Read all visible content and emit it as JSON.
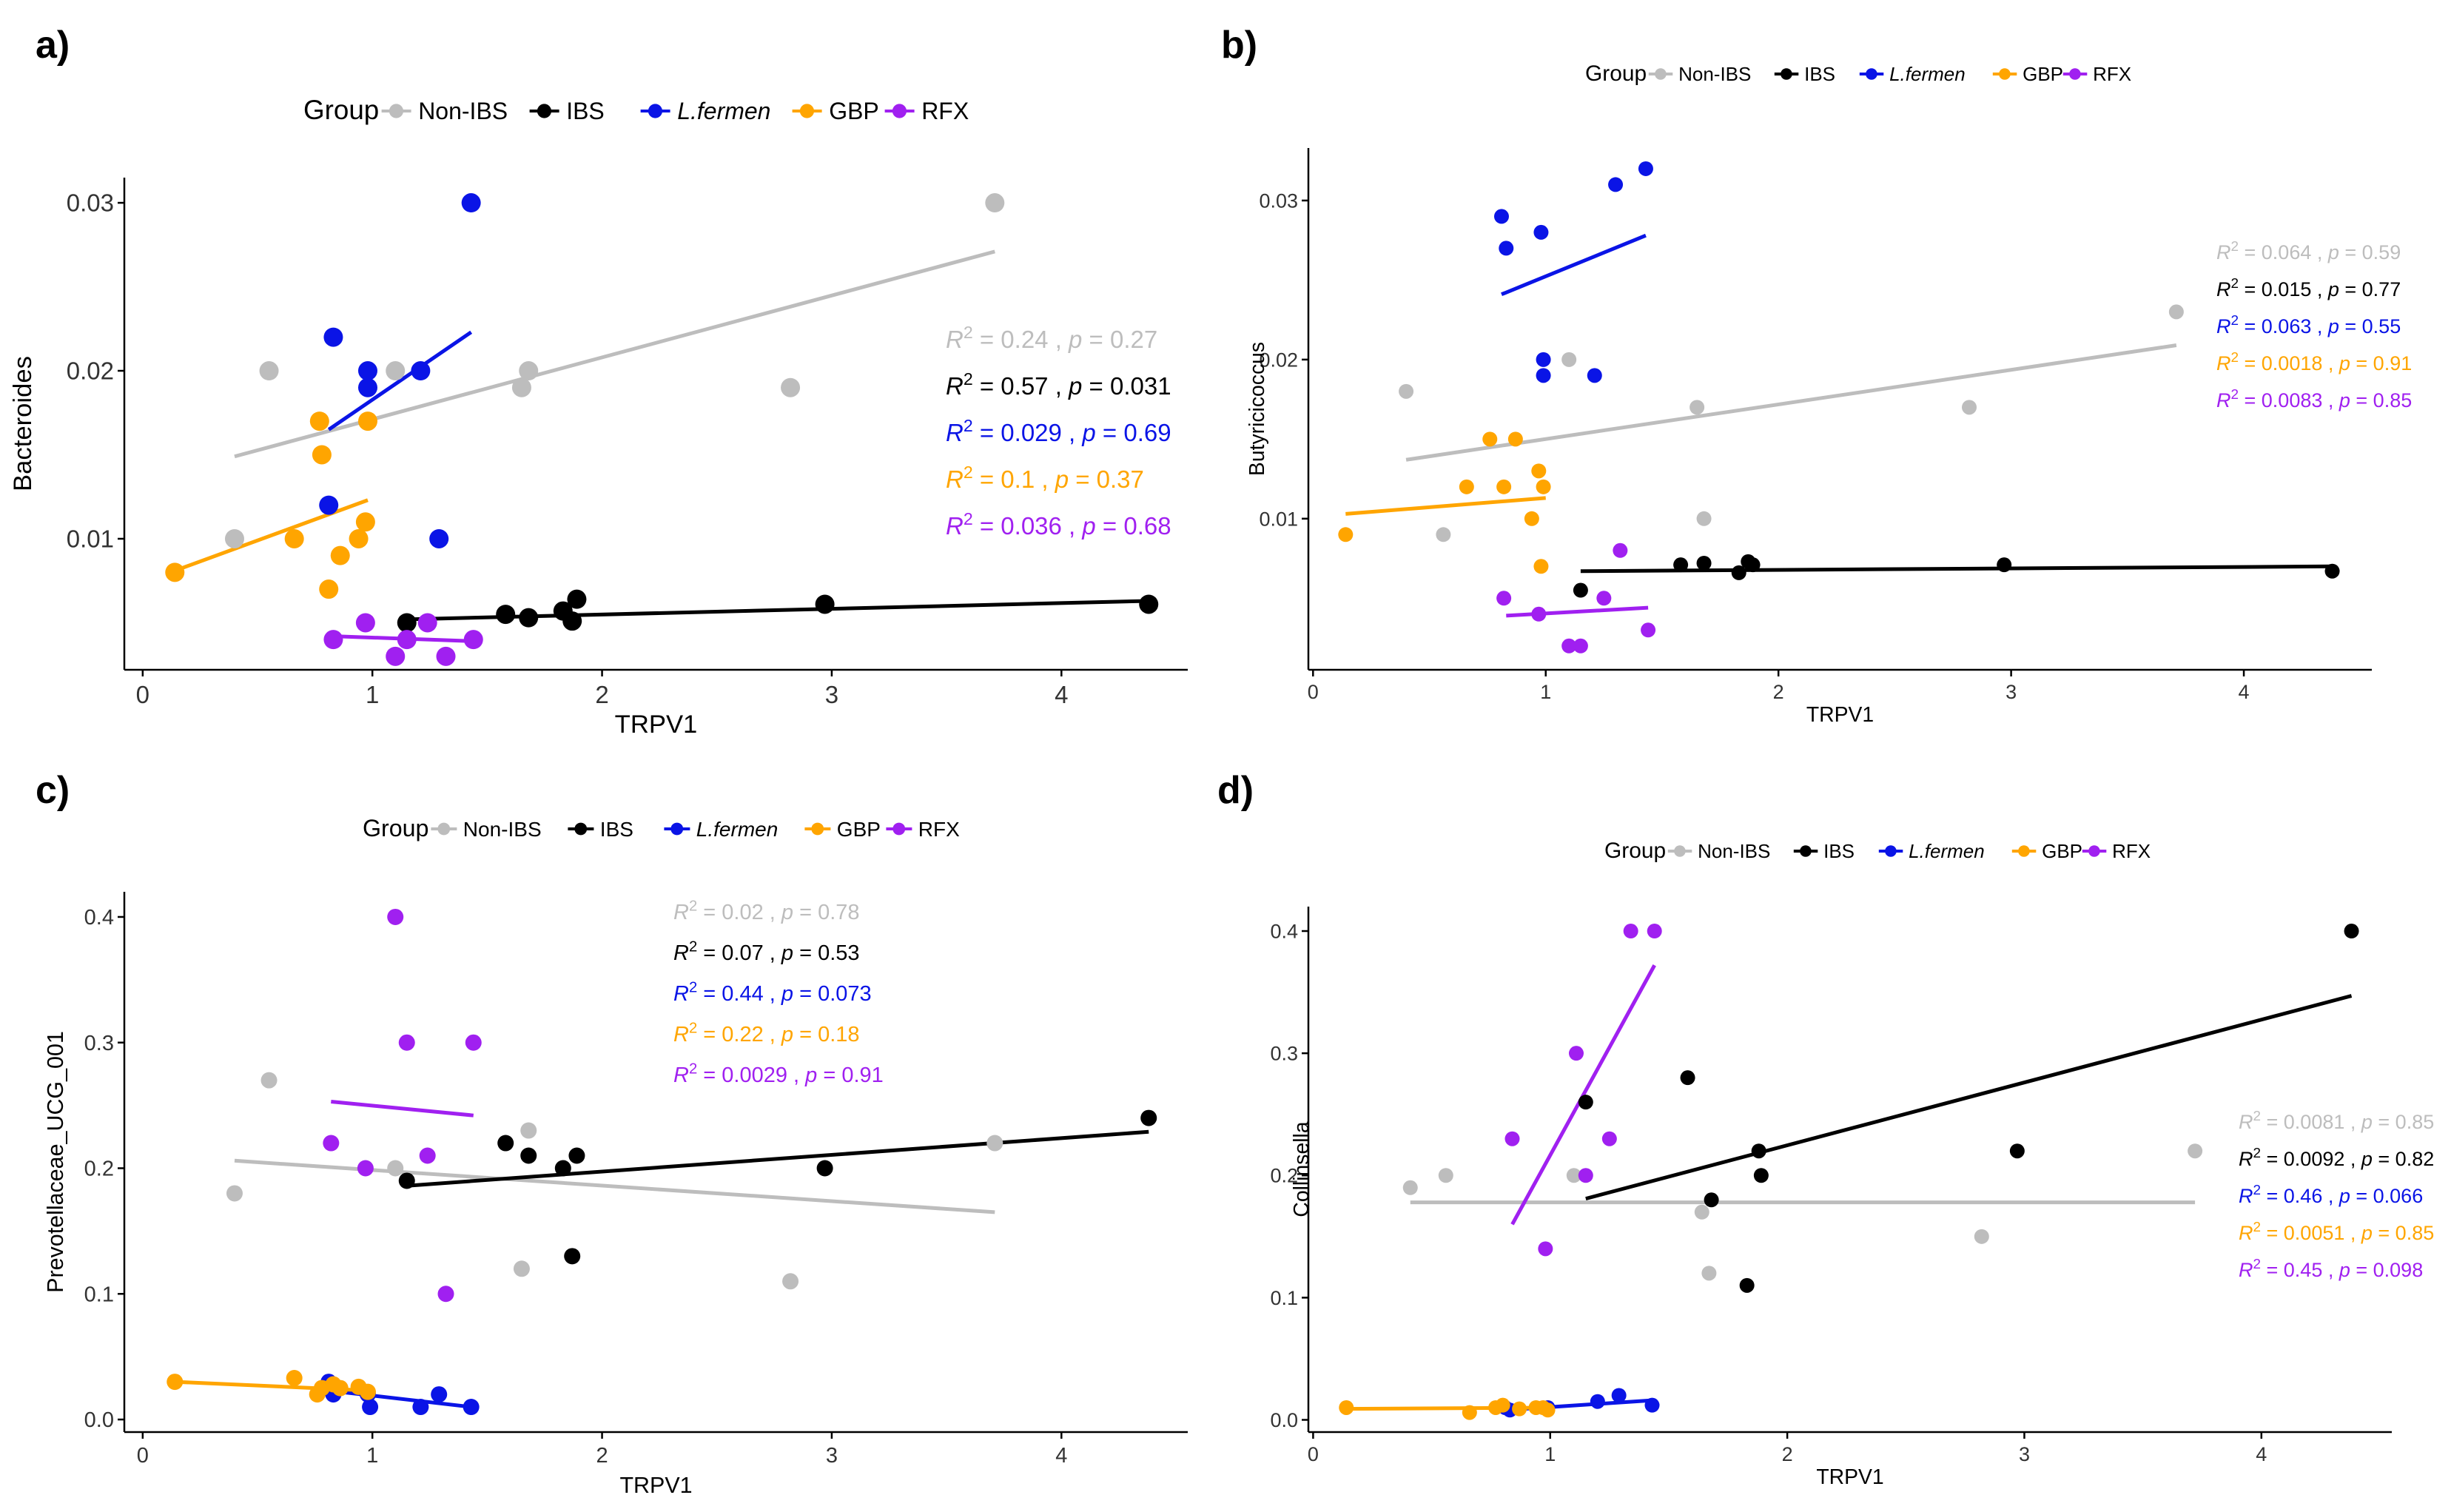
{
  "colors": {
    "Non-IBS": "#bdbdbd",
    "IBS": "#000000",
    "L.fermen": "#0a14e6",
    "GBP": "#ffa500",
    "RFX": "#a020f0"
  },
  "legend": {
    "title": "Group",
    "items": [
      "Non-IBS",
      "IBS",
      "L.fermen",
      "GBP",
      "RFX"
    ]
  },
  "chart_data": [
    {
      "type": "scatter",
      "label": "a)",
      "title": "",
      "xlabel": "TRPV1",
      "ylabel": "Bacteroides",
      "xlim": [
        -0.08,
        4.55
      ],
      "ylim": [
        0.0022,
        0.0315
      ],
      "xticks": [
        0,
        1,
        2,
        3,
        4
      ],
      "xtick_labels": [
        "0",
        "1",
        "2",
        "3",
        "4"
      ],
      "yticks": [
        0.01,
        0.02,
        0.03
      ],
      "ytick_labels": [
        "0.01",
        "0.02",
        "0.03"
      ],
      "series": [
        {
          "name": "Non-IBS",
          "x": [
            0.4,
            0.55,
            1.1,
            1.65,
            1.68,
            2.82,
            3.71
          ],
          "y": [
            0.01,
            0.02,
            0.02,
            0.019,
            0.02,
            0.019,
            0.03
          ],
          "fit": [
            [
              0.4,
              0.0149
            ],
            [
              3.71,
              0.0271
            ]
          ]
        },
        {
          "name": "IBS",
          "x": [
            1.15,
            1.58,
            1.68,
            1.83,
            1.87,
            1.89,
            2.97,
            4.38
          ],
          "y": [
            0.005,
            0.0055,
            0.0053,
            0.0057,
            0.0051,
            0.0064,
            0.0061,
            0.0061
          ],
          "fit": [
            [
              1.15,
              0.0052
            ],
            [
              4.38,
              0.0063
            ]
          ]
        },
        {
          "name": "L.fermen",
          "x": [
            0.81,
            0.83,
            0.98,
            0.98,
            1.21,
            1.29,
            1.43
          ],
          "y": [
            0.012,
            0.022,
            0.019,
            0.02,
            0.02,
            0.01,
            0.03
          ],
          "fit": [
            [
              0.81,
              0.0165
            ],
            [
              1.43,
              0.0223
            ]
          ]
        },
        {
          "name": "GBP",
          "x": [
            0.14,
            0.66,
            0.77,
            0.78,
            0.81,
            0.86,
            0.94,
            0.97,
            0.98
          ],
          "y": [
            0.008,
            0.01,
            0.017,
            0.015,
            0.007,
            0.009,
            0.01,
            0.011,
            0.017
          ],
          "fit": [
            [
              0.14,
              0.0081
            ],
            [
              0.98,
              0.0123
            ]
          ]
        },
        {
          "name": "RFX",
          "x": [
            0.83,
            0.97,
            1.1,
            1.15,
            1.24,
            1.32,
            1.44
          ],
          "y": [
            0.004,
            0.005,
            0.003,
            0.004,
            0.005,
            0.003,
            0.004
          ],
          "fit": [
            [
              0.83,
              0.0042
            ],
            [
              1.44,
              0.0039
            ]
          ]
        }
      ],
      "annotations": [
        {
          "group": "Non-IBS",
          "r2": "0.24",
          "p": "0.27"
        },
        {
          "group": "IBS",
          "r2": "0.57",
          "p": "0.031"
        },
        {
          "group": "L.fermen",
          "r2": "0.029",
          "p": "0.69"
        },
        {
          "group": "GBP",
          "r2": "0.1",
          "p": "0.37"
        },
        {
          "group": "RFX",
          "r2": "0.036",
          "p": "0.68"
        }
      ]
    },
    {
      "type": "scatter",
      "label": "b)",
      "title": "",
      "xlabel": "TRPV1",
      "ylabel": "Butyricicoccus",
      "xlim": [
        -0.02,
        4.55
      ],
      "ylim": [
        0.0005,
        0.0333
      ],
      "xticks": [
        0,
        1,
        2,
        3,
        4
      ],
      "xtick_labels": [
        "0",
        "1",
        "2",
        "3",
        "4"
      ],
      "yticks": [
        0.01,
        0.02,
        0.03
      ],
      "ytick_labels": [
        "0.01",
        "0.02",
        "0.03"
      ],
      "series": [
        {
          "name": "Non-IBS",
          "x": [
            0.4,
            0.56,
            1.1,
            1.65,
            1.68,
            2.82,
            3.71
          ],
          "y": [
            0.018,
            0.009,
            0.02,
            0.017,
            0.01,
            0.017,
            0.023
          ],
          "fit": [
            [
              0.4,
              0.0137
            ],
            [
              3.71,
              0.0209
            ]
          ]
        },
        {
          "name": "IBS",
          "x": [
            1.15,
            1.58,
            1.68,
            1.83,
            1.87,
            1.89,
            2.97,
            4.38
          ],
          "y": [
            0.0055,
            0.0071,
            0.0072,
            0.0066,
            0.0073,
            0.0071,
            0.0071,
            0.0067
          ],
          "fit": [
            [
              1.15,
              0.0067
            ],
            [
              4.38,
              0.007
            ]
          ]
        },
        {
          "name": "L.fermen",
          "x": [
            0.81,
            0.83,
            0.98,
            0.99,
            0.99,
            1.21,
            1.3,
            1.43
          ],
          "y": [
            0.029,
            0.027,
            0.028,
            0.02,
            0.019,
            0.019,
            0.031,
            0.032
          ],
          "fit": [
            [
              0.81,
              0.0241
            ],
            [
              1.43,
              0.0278
            ]
          ]
        },
        {
          "name": "GBP",
          "x": [
            0.14,
            0.66,
            0.76,
            0.82,
            0.87,
            0.94,
            0.97,
            0.98,
            0.99
          ],
          "y": [
            0.009,
            0.012,
            0.015,
            0.012,
            0.015,
            0.01,
            0.013,
            0.007,
            0.012
          ],
          "fit": [
            [
              0.14,
              0.0103
            ],
            [
              1.0,
              0.0113
            ]
          ]
        },
        {
          "name": "RFX",
          "x": [
            0.82,
            0.97,
            1.1,
            1.15,
            1.25,
            1.32,
            1.44
          ],
          "y": [
            0.005,
            0.004,
            0.002,
            0.002,
            0.005,
            0.008,
            0.003
          ],
          "fit": [
            [
              0.83,
              0.0039
            ],
            [
              1.44,
              0.0044
            ]
          ]
        }
      ],
      "annotations": [
        {
          "group": "Non-IBS",
          "r2": "0.064",
          "p": "0.59"
        },
        {
          "group": "IBS",
          "r2": "0.015",
          "p": "0.77"
        },
        {
          "group": "L.fermen",
          "r2": "0.063",
          "p": "0.55"
        },
        {
          "group": "GBP",
          "r2": "0.0018",
          "p": "0.91"
        },
        {
          "group": "RFX",
          "r2": "0.0083",
          "p": "0.85"
        }
      ]
    },
    {
      "type": "scatter",
      "label": "c)",
      "title": "",
      "xlabel": "TRPV1",
      "ylabel": "Prevotellaceae_UCG_001",
      "xlim": [
        -0.08,
        4.55
      ],
      "ylim": [
        -0.01,
        0.42
      ],
      "xticks": [
        0,
        1,
        2,
        3,
        4
      ],
      "xtick_labels": [
        "0",
        "1",
        "2",
        "3",
        "4"
      ],
      "yticks": [
        0.0,
        0.1,
        0.2,
        0.3,
        0.4
      ],
      "ytick_labels": [
        "0.0",
        "0.1",
        "0.2",
        "0.3",
        "0.4"
      ],
      "series": [
        {
          "name": "Non-IBS",
          "x": [
            0.4,
            0.55,
            1.1,
            1.65,
            1.68,
            2.82,
            3.71
          ],
          "y": [
            0.18,
            0.27,
            0.2,
            0.12,
            0.23,
            0.11,
            0.22
          ],
          "fit": [
            [
              0.4,
              0.206
            ],
            [
              3.71,
              0.165
            ]
          ]
        },
        {
          "name": "IBS",
          "x": [
            1.15,
            1.58,
            1.68,
            1.83,
            1.87,
            1.89,
            2.97,
            4.38
          ],
          "y": [
            0.19,
            0.22,
            0.21,
            0.2,
            0.13,
            0.21,
            0.2,
            0.24
          ],
          "fit": [
            [
              1.15,
              0.186
            ],
            [
              4.38,
              0.229
            ]
          ]
        },
        {
          "name": "L.fermen",
          "x": [
            0.81,
            0.83,
            0.98,
            0.99,
            1.21,
            1.29,
            1.43
          ],
          "y": [
            0.03,
            0.02,
            0.02,
            0.01,
            0.01,
            0.02,
            0.01
          ],
          "fit": [
            [
              0.81,
              0.023
            ],
            [
              1.43,
              0.01
            ]
          ]
        },
        {
          "name": "GBP",
          "x": [
            0.14,
            0.66,
            0.76,
            0.78,
            0.83,
            0.86,
            0.94,
            0.98
          ],
          "y": [
            0.03,
            0.033,
            0.02,
            0.025,
            0.028,
            0.025,
            0.026,
            0.022
          ],
          "fit": [
            [
              0.14,
              0.03
            ],
            [
              0.99,
              0.023
            ]
          ]
        },
        {
          "name": "RFX",
          "x": [
            0.82,
            0.97,
            1.1,
            1.15,
            1.24,
            1.32,
            1.44
          ],
          "y": [
            0.22,
            0.2,
            0.4,
            0.3,
            0.21,
            0.1,
            0.3
          ],
          "fit": [
            [
              0.82,
              0.253
            ],
            [
              1.44,
              0.242
            ]
          ]
        }
      ],
      "annotations": [
        {
          "group": "Non-IBS",
          "r2": "0.02",
          "p": "0.78"
        },
        {
          "group": "IBS",
          "r2": "0.07",
          "p": "0.53"
        },
        {
          "group": "L.fermen",
          "r2": "0.44",
          "p": "0.073"
        },
        {
          "group": "GBP",
          "r2": "0.22",
          "p": "0.18"
        },
        {
          "group": "RFX",
          "r2": "0.0029",
          "p": "0.91"
        }
      ]
    },
    {
      "type": "scatter",
      "label": "d)",
      "title": "",
      "xlabel": "TRPV1",
      "ylabel": "Collinsella",
      "xlim": [
        -0.02,
        4.55
      ],
      "ylim": [
        -0.01,
        0.42
      ],
      "xticks": [
        0,
        1,
        2,
        3,
        4
      ],
      "xtick_labels": [
        "0",
        "1",
        "2",
        "3",
        "4"
      ],
      "yticks": [
        0.0,
        0.1,
        0.2,
        0.3,
        0.4
      ],
      "ytick_labels": [
        "0.0",
        "0.1",
        "0.2",
        "0.3",
        "0.4"
      ],
      "series": [
        {
          "name": "Non-IBS",
          "x": [
            0.41,
            0.56,
            1.1,
            1.64,
            1.67,
            2.82,
            3.72
          ],
          "y": [
            0.19,
            0.2,
            0.2,
            0.17,
            0.12,
            0.15,
            0.22
          ],
          "fit": [
            [
              0.41,
              0.178
            ],
            [
              3.72,
              0.178
            ]
          ]
        },
        {
          "name": "IBS",
          "x": [
            1.15,
            1.58,
            1.68,
            1.83,
            1.88,
            1.89,
            2.97,
            4.38
          ],
          "y": [
            0.26,
            0.28,
            0.18,
            0.11,
            0.22,
            0.2,
            0.22,
            0.4
          ],
          "fit": [
            [
              1.15,
              0.181
            ],
            [
              4.38,
              0.347
            ]
          ]
        },
        {
          "name": "L.fermen",
          "x": [
            0.81,
            0.83,
            0.99,
            1.2,
            1.29,
            1.43
          ],
          "y": [
            0.01,
            0.008,
            0.01,
            0.015,
            0.02,
            0.012
          ],
          "fit": [
            [
              0.81,
              0.008
            ],
            [
              1.43,
              0.016
            ]
          ]
        },
        {
          "name": "GBP",
          "x": [
            0.14,
            0.66,
            0.77,
            0.8,
            0.87,
            0.94,
            0.97,
            0.99
          ],
          "y": [
            0.01,
            0.006,
            0.01,
            0.012,
            0.009,
            0.01,
            0.01,
            0.008
          ],
          "fit": [
            [
              0.14,
              0.009
            ],
            [
              1.0,
              0.01
            ]
          ]
        },
        {
          "name": "RFX",
          "x": [
            0.84,
            0.98,
            1.11,
            1.15,
            1.25,
            1.34,
            1.44
          ],
          "y": [
            0.23,
            0.14,
            0.3,
            0.2,
            0.23,
            0.4,
            0.4
          ],
          "fit": [
            [
              0.84,
              0.16
            ],
            [
              1.44,
              0.372
            ]
          ]
        }
      ],
      "annotations": [
        {
          "group": "Non-IBS",
          "r2": "0.0081",
          "p": "0.85"
        },
        {
          "group": "IBS",
          "r2": "0.0092",
          "p": "0.82"
        },
        {
          "group": "L.fermen",
          "r2": "0.46",
          "p": "0.066"
        },
        {
          "group": "GBP",
          "r2": "0.0051",
          "p": "0.85"
        },
        {
          "group": "RFX",
          "r2": "0.45",
          "p": "0.098"
        }
      ]
    }
  ]
}
